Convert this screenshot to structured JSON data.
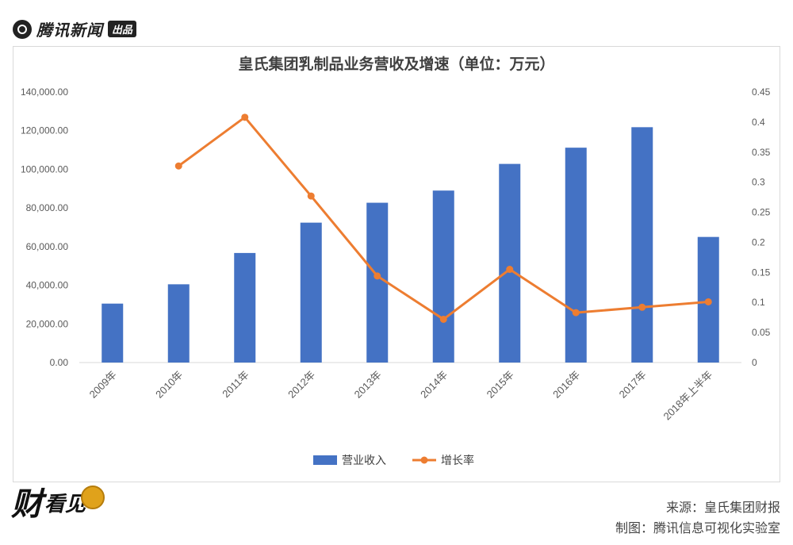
{
  "header": {
    "brand_name": "腾讯新闻",
    "brand_badge": "出品"
  },
  "footer": {
    "source": "来源：皇氏集团财报",
    "made_by": "制图：腾讯信息可视化实验室",
    "brand_cai": "财",
    "brand_kanjian": "看见"
  },
  "colors": {
    "bar": "#4472C4",
    "line": "#ED7D31",
    "grid": "#D9D9D9",
    "axis_text": "#595959"
  },
  "chart_data": {
    "type": "bar",
    "title": "皇氏集团乳制品业务营收及增速（单位：万元）",
    "categories": [
      "2009年",
      "2010年",
      "2011年",
      "2012年",
      "2013年",
      "2014年",
      "2015年",
      "2016年",
      "2017年",
      "2018年上半年"
    ],
    "series": [
      {
        "name": "营业收入",
        "type": "bar",
        "axis": "left",
        "values": [
          30500,
          40500,
          56700,
          72400,
          82700,
          89000,
          102800,
          111200,
          121800,
          65000
        ]
      },
      {
        "name": "增长率",
        "type": "line",
        "axis": "right",
        "values": [
          null,
          0.327,
          0.408,
          0.277,
          0.144,
          0.072,
          0.155,
          0.083,
          0.092,
          0.101
        ]
      }
    ],
    "y_left": {
      "min": 0,
      "max": 140000,
      "step": 20000,
      "tick_labels": [
        "0.00",
        "20,000.00",
        "40,000.00",
        "60,000.00",
        "80,000.00",
        "100,000.00",
        "120,000.00",
        "140,000.00"
      ]
    },
    "y_right": {
      "min": 0,
      "max": 0.45,
      "step": 0.05,
      "tick_labels": [
        "0",
        "0.05",
        "0.1",
        "0.15",
        "0.2",
        "0.25",
        "0.3",
        "0.35",
        "0.4",
        "0.45"
      ]
    },
    "grid": false,
    "legend_position": "bottom"
  }
}
